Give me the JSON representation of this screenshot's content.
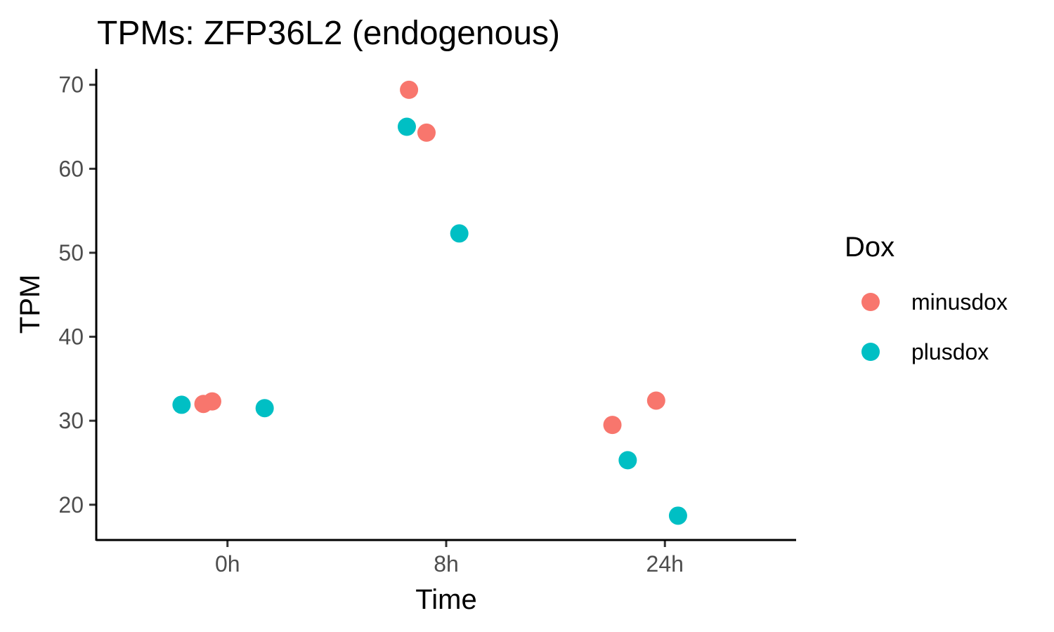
{
  "chart_data": {
    "type": "scatter",
    "title": "TPMs: ZFP36L2 (endogenous)",
    "xlabel": "Time",
    "ylabel": "TPM",
    "categories": [
      "0h",
      "8h",
      "24h"
    ],
    "ylim": [
      15.8,
      71.9
    ],
    "yticks": [
      20,
      30,
      40,
      50,
      60,
      70
    ],
    "grid": false,
    "legend": {
      "title": "Dox",
      "placement": "right"
    },
    "series": [
      {
        "name": "minusdox",
        "color": "#F8766D",
        "points": [
          {
            "x": "0h",
            "jitter": -0.11,
            "y": 32.0
          },
          {
            "x": "0h",
            "jitter": -0.07,
            "y": 32.3
          },
          {
            "x": "8h",
            "jitter": -0.17,
            "y": 69.4
          },
          {
            "x": "8h",
            "jitter": -0.09,
            "y": 64.3
          },
          {
            "x": "24h",
            "jitter": -0.24,
            "y": 29.5
          },
          {
            "x": "24h",
            "jitter": -0.04,
            "y": 32.4
          }
        ]
      },
      {
        "name": "plusdox",
        "color": "#00BFC4",
        "points": [
          {
            "x": "0h",
            "jitter": -0.21,
            "y": 31.9
          },
          {
            "x": "0h",
            "jitter": 0.17,
            "y": 31.5
          },
          {
            "x": "8h",
            "jitter": -0.18,
            "y": 65.0
          },
          {
            "x": "8h",
            "jitter": 0.06,
            "y": 52.3
          },
          {
            "x": "24h",
            "jitter": -0.17,
            "y": 25.3
          },
          {
            "x": "24h",
            "jitter": 0.06,
            "y": 18.7
          }
        ]
      }
    ]
  }
}
